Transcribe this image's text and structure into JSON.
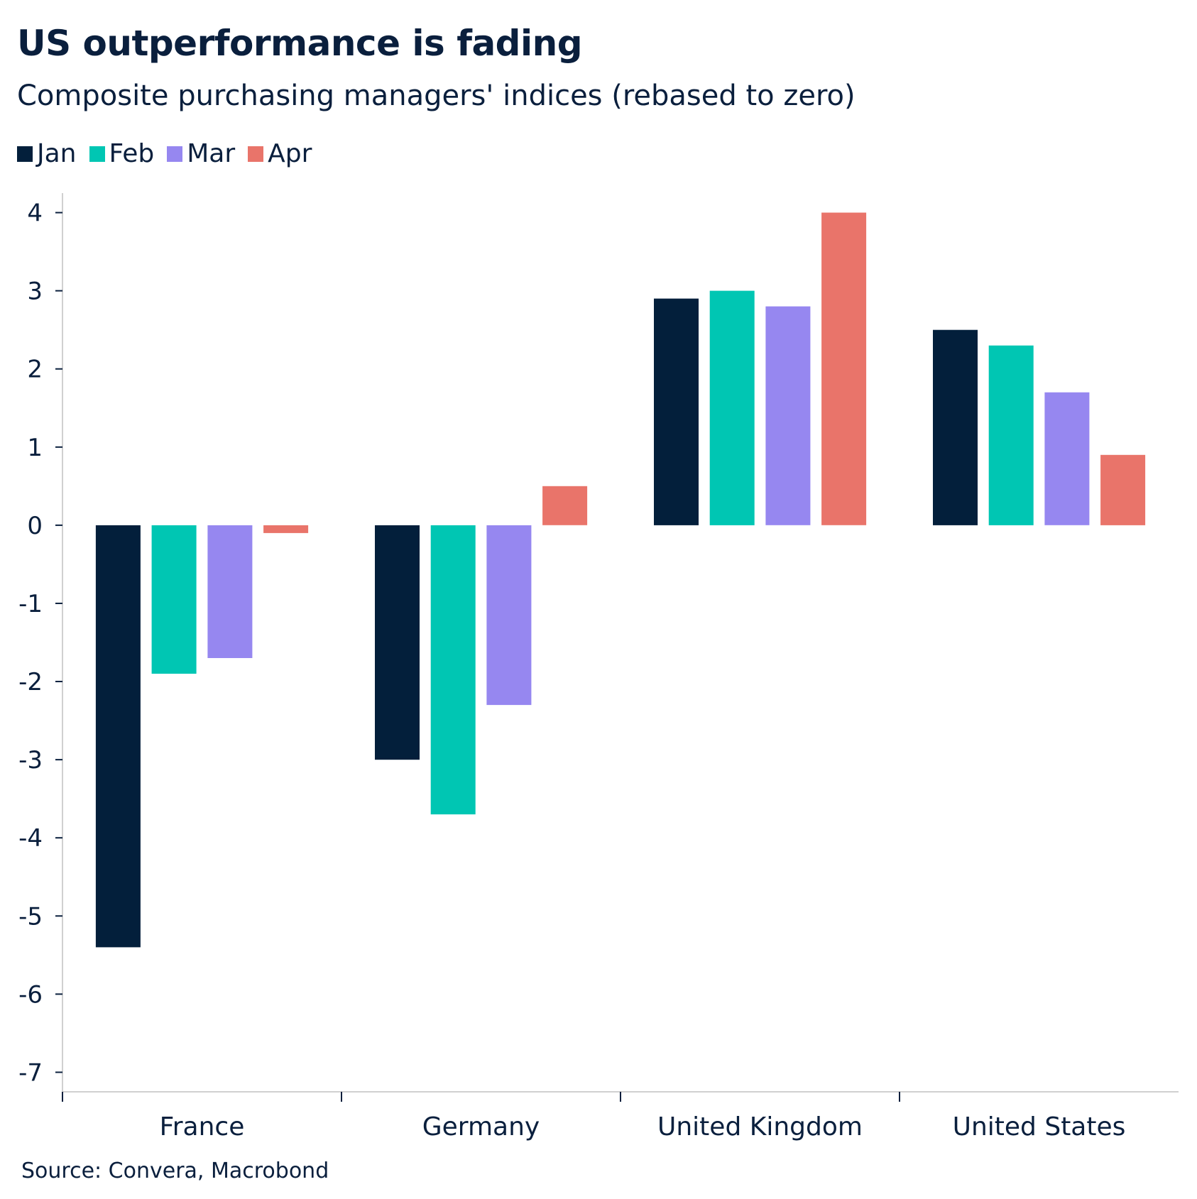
{
  "chart_data": {
    "type": "bar",
    "title": "US outperformance is fading",
    "subtitle": "Composite purchasing managers' indices (rebased to zero)",
    "source": "Source: Convera, Macrobond",
    "categories": [
      "France",
      "Germany",
      "United Kingdom",
      "United States"
    ],
    "series": [
      {
        "name": "Jan",
        "color": "#031f3b",
        "values": [
          -5.4,
          -3.0,
          2.9,
          2.5
        ]
      },
      {
        "name": "Feb",
        "color": "#00c6b3",
        "values": [
          -1.9,
          -3.7,
          3.0,
          2.3
        ]
      },
      {
        "name": "Mar",
        "color": "#9687f0",
        "values": [
          -1.7,
          -2.3,
          2.8,
          1.7
        ]
      },
      {
        "name": "Apr",
        "color": "#e9746a",
        "values": [
          -0.1,
          0.5,
          4.0,
          0.9
        ]
      }
    ],
    "ylim": [
      -7.25,
      4.25
    ],
    "yticks": [
      "4",
      "3",
      "2",
      "1",
      "0",
      "-1",
      "-2",
      "-3",
      "-4",
      "-5",
      "-6",
      "-7"
    ],
    "xlabel": "",
    "ylabel": "",
    "legend_position": "top-left",
    "grid": false
  }
}
